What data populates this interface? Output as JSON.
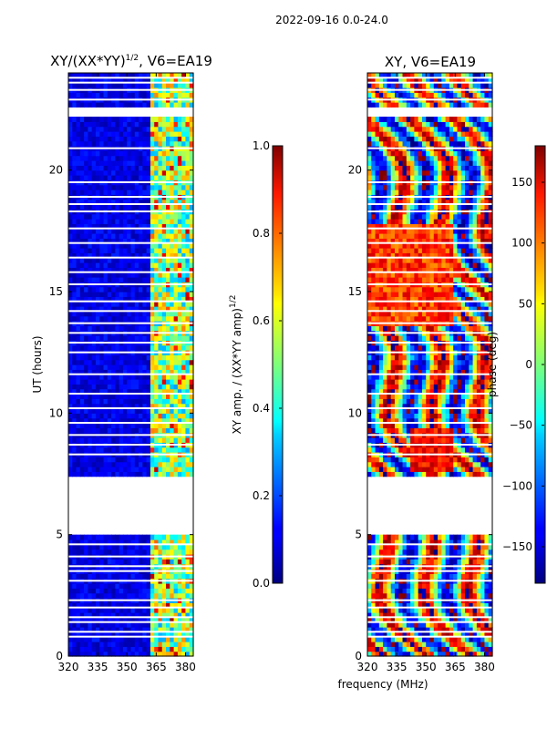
{
  "figure_title": "2022-09-16 0.0-24.0",
  "x_axis_label": "frequency (MHz)",
  "chart_data": [
    {
      "type": "heatmap",
      "title_main": "XY/(XX*YY)",
      "title_sup": "1/2",
      "title_tail": ", V6=EA19",
      "xlabel": "frequency (MHz)",
      "ylabel": "UT (hours)",
      "xlim": [
        320,
        384
      ],
      "ylim": [
        0,
        24
      ],
      "x_ticks": [
        "320",
        "335",
        "350",
        "365",
        "380"
      ],
      "x_tick_values": [
        320,
        335,
        350,
        365,
        380
      ],
      "y_ticks": [
        "0",
        "5",
        "10",
        "15",
        "20"
      ],
      "y_tick_values": [
        0,
        5,
        10,
        15,
        20
      ],
      "colorbar": {
        "label_main": "XY amp. / (XX*YY amp)",
        "label_sup": "1/2",
        "range": [
          0.0,
          1.0
        ],
        "ticks": [
          "0.0",
          "0.2",
          "0.4",
          "0.6",
          "0.8",
          "1.0"
        ],
        "tick_values": [
          0.0,
          0.2,
          0.4,
          0.6,
          0.8,
          1.0
        ],
        "colormap": "jet"
      },
      "blank_ut_ranges": [
        [
          5.0,
          7.5
        ],
        [
          22.2,
          22.6
        ]
      ]
    },
    {
      "type": "heatmap",
      "title": "XY, V6=EA19",
      "xlabel": "frequency (MHz)",
      "ylabel": "",
      "xlim": [
        320,
        384
      ],
      "ylim": [
        0,
        24
      ],
      "x_ticks": [
        "320",
        "335",
        "350",
        "365",
        "380"
      ],
      "x_tick_values": [
        320,
        335,
        350,
        365,
        380
      ],
      "y_ticks": [
        "0",
        "5",
        "10",
        "15",
        "20"
      ],
      "y_tick_values": [
        0,
        5,
        10,
        15,
        20
      ],
      "colorbar": {
        "label": "phase (deg)",
        "range": [
          -180,
          180
        ],
        "ticks": [
          "−150",
          "−100",
          "−50",
          "0",
          "50",
          "100",
          "150"
        ],
        "tick_values": [
          -150,
          -100,
          -50,
          0,
          50,
          100,
          150
        ],
        "colormap": "jet"
      },
      "blank_ut_ranges": [
        [
          5.0,
          7.5
        ],
        [
          22.2,
          22.6
        ]
      ]
    }
  ]
}
